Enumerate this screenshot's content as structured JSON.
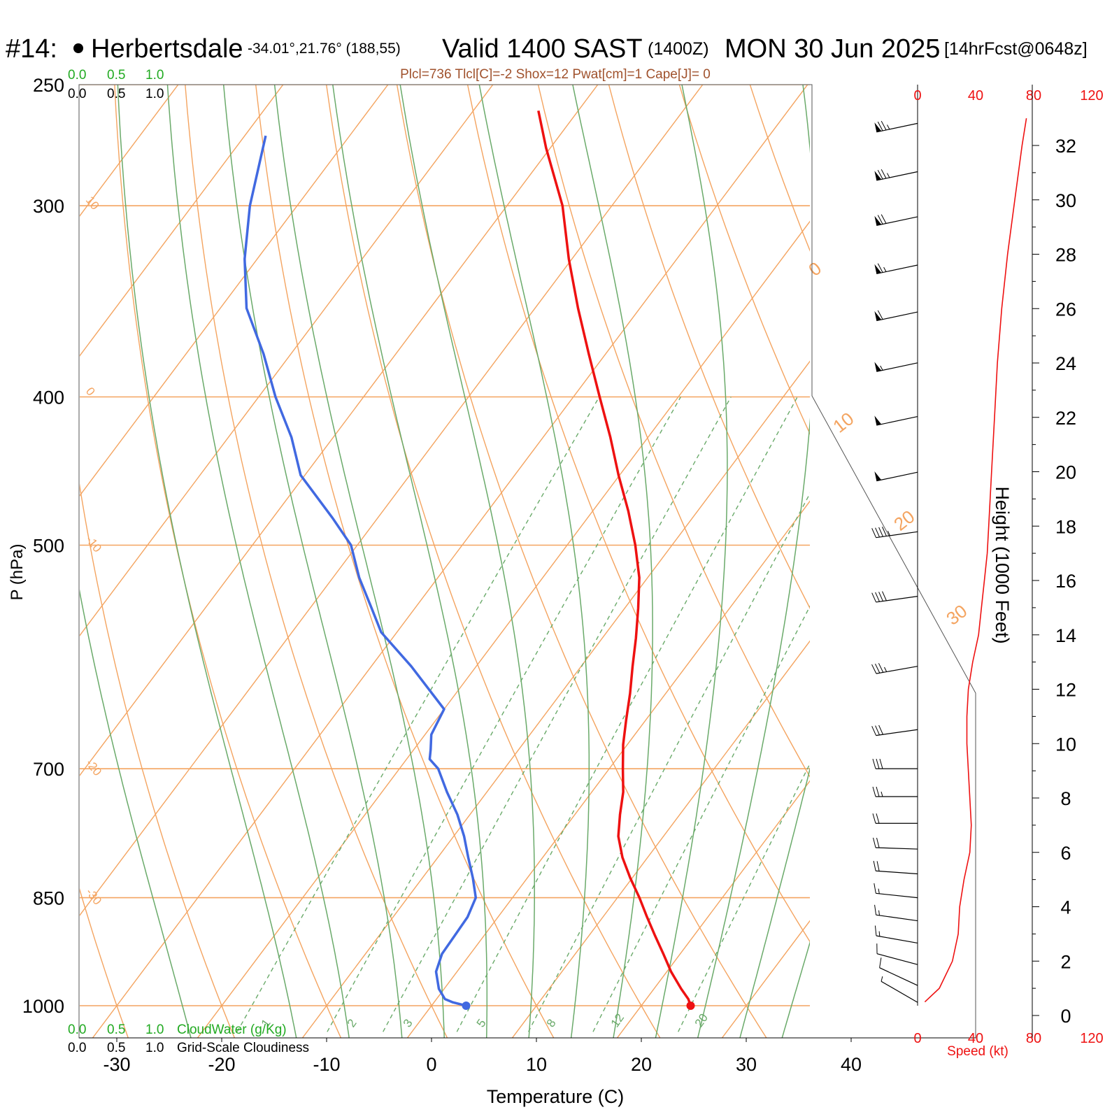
{
  "header": {
    "station_id": "#14:",
    "station_name": "Herbertsdale",
    "coords": "-34.01°,21.76° (188,55)",
    "valid": "Valid 1400 SAST",
    "zulu": "(1400Z)",
    "date": "MON 30 Jun 2025",
    "forecast": "[14hrFcst@0648z]",
    "indices": "Plcl=736 Tlcl[C]=-2 Shox=12 Pwat[cm]=1 Cape[J]= 0"
  },
  "colors": {
    "temperature": "#ee1111",
    "dewpoint": "#4169e1",
    "isotherm": "#f4a460",
    "dry_adiabat": "#f4a460",
    "moist_adiabat": "#6aaa6a",
    "mixing_ratio": "#6aaa6a",
    "cloud_water": "#22aa22",
    "wind_speed": "#ee1111",
    "indices": "#a0522d"
  },
  "chart_data": {
    "type": "line",
    "title": "Valid 1400 SAST (1400Z) MON 30 Jun 2025",
    "xlabel": "Temperature (C)",
    "ylabel": "P (hPa)",
    "x_ticks": [
      -30,
      -20,
      -10,
      0,
      10,
      20,
      30,
      40
    ],
    "p_ticks": [
      250,
      300,
      400,
      500,
      700,
      850,
      1000
    ],
    "ylim": [
      1030,
      250
    ],
    "y_scale": "log",
    "skew": true,
    "series": [
      {
        "role": "temperature",
        "pressure": [
          1000,
          990,
          975,
          950,
          925,
          900,
          875,
          850,
          825,
          800,
          775,
          750,
          725,
          700,
          675,
          650,
          625,
          600,
          575,
          550,
          525,
          500,
          475,
          450,
          425,
          400,
          375,
          350,
          325,
          300,
          275,
          260
        ],
        "values": [
          24.7,
          24.0,
          22.6,
          20.4,
          18.4,
          16.3,
          14.2,
          12.1,
          9.8,
          7.6,
          5.7,
          4.3,
          3.0,
          1.3,
          -0.4,
          -1.9,
          -3.4,
          -5.1,
          -6.8,
          -8.7,
          -10.8,
          -13.5,
          -16.6,
          -20.1,
          -23.6,
          -27.5,
          -31.6,
          -35.9,
          -40.3,
          -44.7,
          -50.4,
          -53.8
        ]
      },
      {
        "role": "dewpoint",
        "pressure": [
          1000,
          995,
          990,
          975,
          950,
          925,
          900,
          875,
          850,
          825,
          800,
          775,
          750,
          725,
          700,
          690,
          680,
          665,
          640,
          600,
          570,
          550,
          525,
          500,
          480,
          450,
          425,
          400,
          375,
          350,
          325,
          300,
          270
        ],
        "values": [
          3.3,
          1.8,
          0.8,
          -0.5,
          -2.0,
          -2.7,
          -2.8,
          -2.9,
          -3.5,
          -5.2,
          -7.1,
          -9.0,
          -11.2,
          -13.8,
          -16.3,
          -17.8,
          -18.4,
          -19.4,
          -20.0,
          -26.2,
          -31.5,
          -34.1,
          -37.5,
          -40.6,
          -44.3,
          -50.4,
          -54.0,
          -58.4,
          -62.6,
          -67.5,
          -71.2,
          -74.5,
          -78.0
        ]
      }
    ],
    "surface": {
      "pressure": 1000,
      "temperature": 24.7,
      "dewpoint": 3.3
    },
    "isotherm_labels": [
      "10",
      "0",
      "-10",
      "-20",
      "-30"
    ],
    "dry_adiabat_labels": [
      "0",
      "10",
      "20",
      "30"
    ],
    "mixing_ratio_labels": [
      "1",
      "2",
      "3",
      "5",
      "8",
      "12",
      "20"
    ],
    "wind_barbs": {
      "direction_deg": [
        258,
        258,
        258,
        258,
        258,
        258,
        258,
        258,
        262,
        262,
        260,
        262,
        270,
        270,
        270,
        272,
        274,
        276,
        278,
        280,
        285,
        295,
        300
      ],
      "speed_kt": [
        75,
        75,
        70,
        65,
        60,
        55,
        50,
        50,
        45,
        40,
        35,
        30,
        28,
        25,
        22,
        20,
        18,
        16,
        15,
        14,
        12,
        8,
        4
      ]
    },
    "speed_profile": {
      "height_kft": [
        0.5,
        1,
        2,
        3,
        4,
        5,
        6,
        7,
        8,
        9,
        10,
        11,
        12,
        13,
        14,
        15,
        16,
        17,
        18,
        20,
        22,
        24,
        26,
        28,
        30,
        32,
        33
      ],
      "speed_kt": [
        5,
        15,
        24,
        28,
        29,
        32,
        36,
        37,
        36,
        35,
        34,
        34,
        35,
        38,
        42,
        44,
        46,
        48,
        49,
        51,
        53,
        55,
        58,
        62,
        67,
        72,
        75
      ]
    },
    "speed_axis": {
      "label": "Speed (kt)",
      "ticks": [
        "0",
        "40",
        "80",
        "120"
      ],
      "max": 120
    },
    "height_axis": {
      "label": "Height (1000 Feet)",
      "ticks": [
        0,
        2,
        4,
        6,
        8,
        10,
        12,
        14,
        16,
        18,
        20,
        22,
        24,
        26,
        28,
        30,
        32
      ]
    },
    "cloud_scale": {
      "cloud_water_label": "CloudWater (g/Kg)",
      "cloudiness_label": "Grid-Scale Cloudiness",
      "ticks": [
        "0.0",
        "0.5",
        "1.0"
      ]
    }
  }
}
